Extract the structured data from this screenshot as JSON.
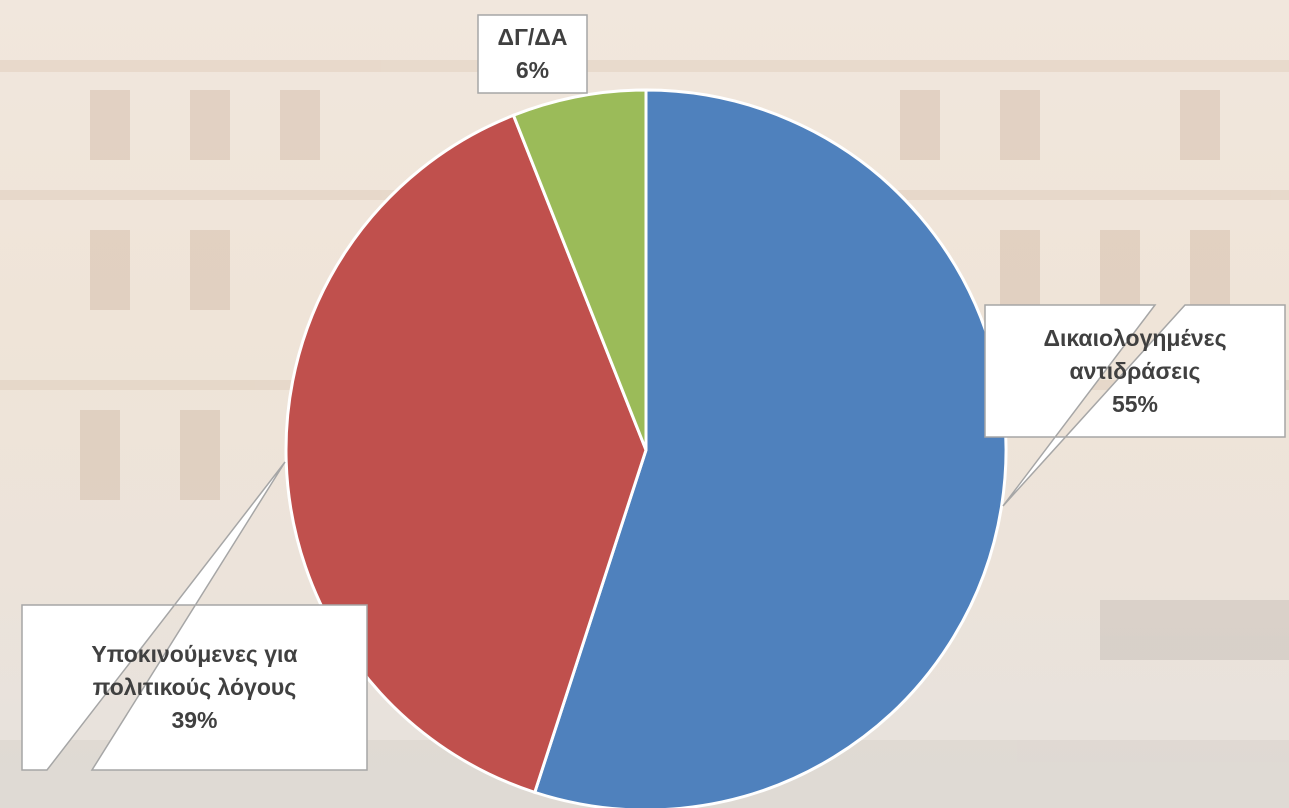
{
  "chart_data": {
    "type": "pie",
    "categories": [
      "Δικαιολογημένες αντιδράσεις",
      "Υποκινούμενες για πολιτικούς λόγους",
      "ΔΓ/ΔΑ"
    ],
    "values": [
      55,
      39,
      6
    ],
    "value_labels": [
      "55%",
      "39%",
      "6%"
    ],
    "colors": [
      "#4f81bd",
      "#c0504d",
      "#9bbb59"
    ]
  }
}
